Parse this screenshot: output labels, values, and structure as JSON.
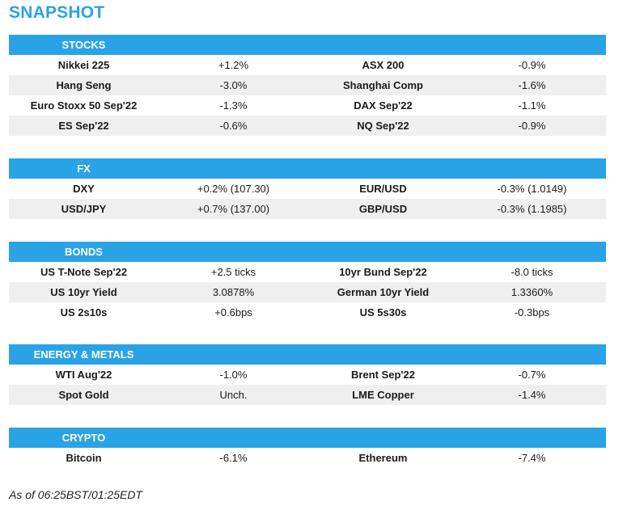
{
  "title": "SNAPSHOT",
  "sections": [
    {
      "name": "STOCKS",
      "rows": [
        [
          "Nikkei 225",
          "+1.2%",
          "ASX 200",
          "-0.9%"
        ],
        [
          "Hang Seng",
          "-3.0%",
          "Shanghai Comp",
          "-1.6%"
        ],
        [
          "Euro Stoxx 50 Sep'22",
          "-1.3%",
          "DAX Sep'22",
          "-1.1%"
        ],
        [
          "ES Sep'22",
          "-0.6%",
          "NQ Sep'22",
          "-0.9%"
        ]
      ]
    },
    {
      "name": "FX",
      "rows": [
        [
          "DXY",
          "+0.2% (107.30)",
          "EUR/USD",
          "-0.3% (1.0149)"
        ],
        [
          "USD/JPY",
          "+0.7% (137.00)",
          "GBP/USD",
          "-0.3% (1.1985)"
        ]
      ]
    },
    {
      "name": "BONDS",
      "rows": [
        [
          "US T-Note Sep'22",
          "+2.5 ticks",
          "10yr Bund Sep'22",
          "-8.0 ticks"
        ],
        [
          "US 10yr Yield",
          "3.0878%",
          "German 10yr Yield",
          "1.3360%"
        ],
        [
          "US 2s10s",
          "+0.6bps",
          "US 5s30s",
          "-0.3bps"
        ]
      ]
    },
    {
      "name": "ENERGY & METALS",
      "rows": [
        [
          "WTI Aug'22",
          "-1.0%",
          "Brent Sep'22",
          "-0.7%"
        ],
        [
          "Spot Gold",
          "Unch.",
          "LME Copper",
          "-1.4%"
        ]
      ]
    },
    {
      "name": "CRYPTO",
      "rows": [
        [
          "Bitcoin",
          "-6.1%",
          "Ethereum",
          "-7.4%"
        ]
      ]
    }
  ],
  "footer": "As of 06:25BST/01:25EDT",
  "colors": {
    "header_bg": "#2aa3e6",
    "title": "#2aa3e6",
    "alt_row": "#efefef"
  }
}
